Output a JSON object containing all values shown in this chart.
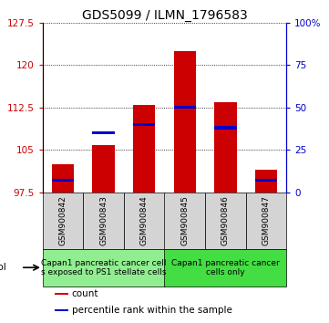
{
  "title": "GDS5099 / ILMN_1796583",
  "samples": [
    "GSM900842",
    "GSM900843",
    "GSM900844",
    "GSM900845",
    "GSM900846",
    "GSM900847"
  ],
  "counts": [
    102.5,
    105.8,
    113.0,
    122.5,
    113.5,
    101.5
  ],
  "percentile_ranks": [
    7,
    35,
    40,
    50,
    38,
    7
  ],
  "ymin": 97.5,
  "ymax": 127.5,
  "yticks_left": [
    97.5,
    105.0,
    112.5,
    120.0,
    127.5
  ],
  "yticks_right": [
    0,
    25,
    50,
    75,
    100
  ],
  "bar_color": "#cc0000",
  "percentile_color": "#0000cc",
  "bar_width": 0.55,
  "bg_color": "#ffffff",
  "gray_box_color": "#d4d4d4",
  "green1_color": "#90ee90",
  "green2_color": "#44dd44",
  "left_axis_color": "#cc0000",
  "right_axis_color": "#0000cc",
  "title_fontsize": 10,
  "tick_fontsize": 7.5,
  "sample_fontsize": 6.5,
  "legend_fontsize": 8,
  "proto_fontsize": 6.5,
  "protocol_groups": [
    {
      "label": "Capan1 pancreatic cancer cell\ns exposed to PS1 stellate cells",
      "start": 0,
      "end": 3
    },
    {
      "label": "Capan1 pancreatic cancer\ncells only",
      "start": 3,
      "end": 6
    }
  ]
}
